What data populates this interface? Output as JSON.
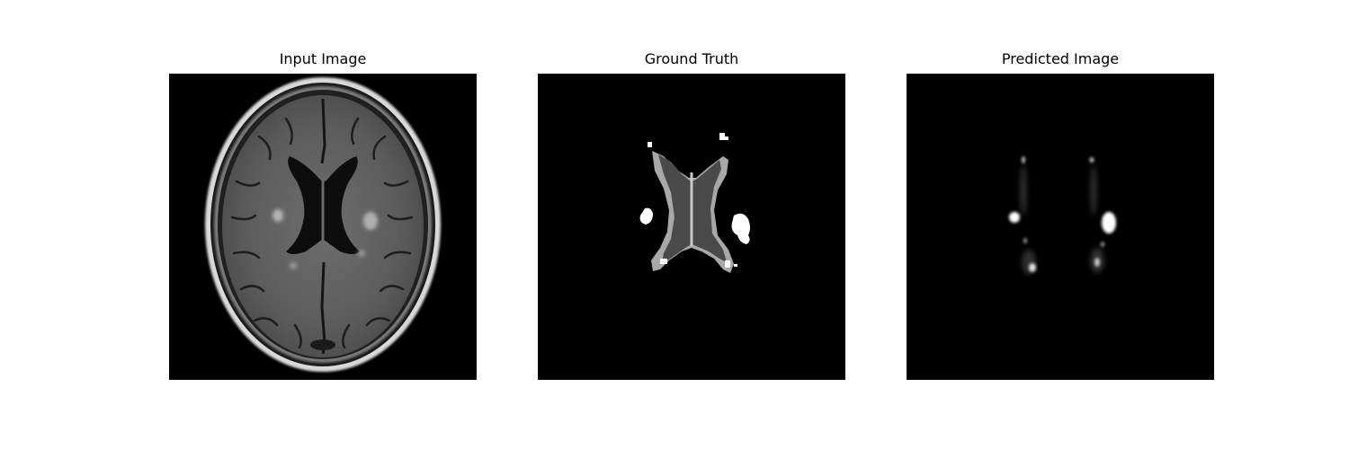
{
  "panels": [
    {
      "title": "Input Image"
    },
    {
      "title": "Ground Truth"
    },
    {
      "title": "Predicted Image"
    }
  ]
}
